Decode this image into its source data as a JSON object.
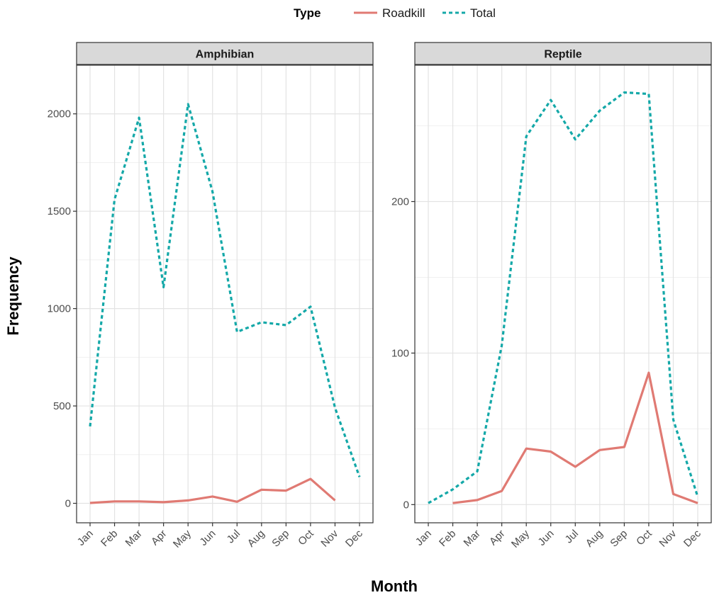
{
  "chart_data": {
    "type": "line",
    "xlabel": "Month",
    "ylabel": "Frequency",
    "legend": {
      "title": "Type",
      "placement": "top",
      "entries": [
        {
          "name": "Roadkill",
          "color": "#E07A73",
          "style": "solid"
        },
        {
          "name": "Total",
          "color": "#14A8A8",
          "style": "dashed"
        }
      ]
    },
    "grid": true,
    "categories": [
      "Jan",
      "Feb",
      "Mar",
      "Apr",
      "May",
      "Jun",
      "Jul",
      "Aug",
      "Sep",
      "Oct",
      "Nov",
      "Dec"
    ],
    "panels": [
      {
        "title": "Amphibian",
        "ylim": [
          -100,
          2250
        ],
        "yticks": [
          0,
          500,
          1000,
          1500,
          2000
        ],
        "series": [
          {
            "name": "Roadkill",
            "values": [
              2,
              10,
              10,
              6,
              15,
              35,
              8,
              70,
              65,
              125,
              15,
              null
            ]
          },
          {
            "name": "Total",
            "values": [
              395,
              1560,
              1980,
              1110,
              2050,
              1600,
              880,
              930,
              915,
              1010,
              490,
              135
            ]
          }
        ]
      },
      {
        "title": "Reptile",
        "ylim": [
          -12,
          290
        ],
        "yticks": [
          0,
          100,
          200
        ],
        "series": [
          {
            "name": "Roadkill",
            "values": [
              null,
              1,
              3,
              9,
              37,
              35,
              25,
              36,
              38,
              87,
              7,
              1
            ]
          },
          {
            "name": "Total",
            "values": [
              1,
              10,
              22,
              105,
              243,
              267,
              241,
              260,
              272,
              271,
              56,
              5
            ]
          }
        ]
      }
    ]
  }
}
